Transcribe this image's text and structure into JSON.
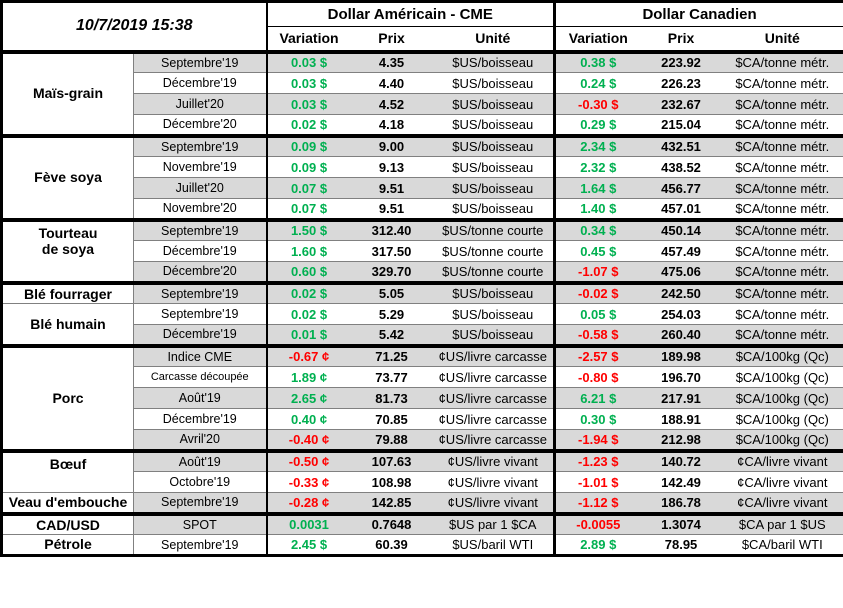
{
  "colors": {
    "positive": "#00B050",
    "negative": "#FF0000",
    "stripe": "#D9D9D9",
    "grid": "#000000"
  },
  "chart_data": {
    "type": "table",
    "title": "10/7/2019 15:38",
    "section_headers": {
      "usd": "Dollar Américain - CME",
      "cad": "Dollar Canadien"
    },
    "column_headers": [
      "Variation",
      "Prix",
      "Unité"
    ],
    "groups": [
      {
        "categories": [
          {
            "label": "Maïs-grain",
            "rowspan": 4
          }
        ],
        "rows": [
          {
            "month": "Septembre'19",
            "us_var": "0.03 $",
            "us_price": "4.35",
            "us_unit": "$US/boisseau",
            "ca_var": "0.38 $",
            "ca_price": "223.92",
            "ca_unit": "$CA/tonne métr."
          },
          {
            "month": "Décembre'19",
            "us_var": "0.03 $",
            "us_price": "4.40",
            "us_unit": "$US/boisseau",
            "ca_var": "0.24 $",
            "ca_price": "226.23",
            "ca_unit": "$CA/tonne métr."
          },
          {
            "month": "Juillet'20",
            "us_var": "0.03 $",
            "us_price": "4.52",
            "us_unit": "$US/boisseau",
            "ca_var": "-0.30 $",
            "ca_price": "232.67",
            "ca_unit": "$CA/tonne métr."
          },
          {
            "month": "Décembre'20",
            "us_var": "0.02 $",
            "us_price": "4.18",
            "us_unit": "$US/boisseau",
            "ca_var": "0.29 $",
            "ca_price": "215.04",
            "ca_unit": "$CA/tonne métr."
          }
        ]
      },
      {
        "categories": [
          {
            "label": "Fève soya",
            "rowspan": 4
          }
        ],
        "rows": [
          {
            "month": "Septembre'19",
            "us_var": "0.09 $",
            "us_price": "9.00",
            "us_unit": "$US/boisseau",
            "ca_var": "2.34 $",
            "ca_price": "432.51",
            "ca_unit": "$CA/tonne métr."
          },
          {
            "month": "Novembre'19",
            "us_var": "0.09 $",
            "us_price": "9.13",
            "us_unit": "$US/boisseau",
            "ca_var": "2.32 $",
            "ca_price": "438.52",
            "ca_unit": "$CA/tonne métr."
          },
          {
            "month": "Juillet'20",
            "us_var": "0.07 $",
            "us_price": "9.51",
            "us_unit": "$US/boisseau",
            "ca_var": "1.64 $",
            "ca_price": "456.77",
            "ca_unit": "$CA/tonne métr."
          },
          {
            "month": "Novembre'20",
            "us_var": "0.07 $",
            "us_price": "9.51",
            "us_unit": "$US/boisseau",
            "ca_var": "1.40 $",
            "ca_price": "457.01",
            "ca_unit": "$CA/tonne métr."
          }
        ]
      },
      {
        "categories": [
          {
            "label": "Tourteau\nde soya",
            "rowspan": 3,
            "valign": "top"
          }
        ],
        "rows": [
          {
            "month": "Septembre'19",
            "us_var": "1.50 $",
            "us_price": "312.40",
            "us_unit": "$US/tonne courte",
            "ca_var": "0.34 $",
            "ca_price": "450.14",
            "ca_unit": "$CA/tonne métr."
          },
          {
            "month": "Décembre'19",
            "us_var": "1.60 $",
            "us_price": "317.50",
            "us_unit": "$US/tonne courte",
            "ca_var": "0.45 $",
            "ca_price": "457.49",
            "ca_unit": "$CA/tonne métr."
          },
          {
            "month": "Décembre'20",
            "us_var": "0.60 $",
            "us_price": "329.70",
            "us_unit": "$US/tonne courte",
            "ca_var": "-1.07 $",
            "ca_price": "475.06",
            "ca_unit": "$CA/tonne métr."
          }
        ]
      },
      {
        "categories": [
          {
            "label": "Blé fourrager",
            "rowspan": 1
          },
          {
            "label": "Blé humain",
            "rowspan": 2
          }
        ],
        "rows": [
          {
            "month": "Septembre'19",
            "us_var": "0.02 $",
            "us_price": "5.05",
            "us_unit": "$US/boisseau",
            "ca_var": "-0.02 $",
            "ca_price": "242.50",
            "ca_unit": "$CA/tonne métr."
          },
          {
            "month": "Septembre'19",
            "us_var": "0.02 $",
            "us_price": "5.29",
            "us_unit": "$US/boisseau",
            "ca_var": "0.05 $",
            "ca_price": "254.03",
            "ca_unit": "$CA/tonne métr."
          },
          {
            "month": "Décembre'19",
            "us_var": "0.01 $",
            "us_price": "5.42",
            "us_unit": "$US/boisseau",
            "ca_var": "-0.58 $",
            "ca_price": "260.40",
            "ca_unit": "$CA/tonne métr."
          }
        ]
      },
      {
        "categories": [
          {
            "label": "Porc",
            "rowspan": 5
          }
        ],
        "rows": [
          {
            "month": "Indice CME",
            "us_var": "-0.67 ¢",
            "us_price": "71.25",
            "us_unit": "¢US/livre carcasse",
            "ca_var": "-2.57 $",
            "ca_price": "189.98",
            "ca_unit": "$CA/100kg (Qc)"
          },
          {
            "month": "Carcasse découpée",
            "small": true,
            "us_var": "1.89 ¢",
            "us_price": "73.77",
            "us_unit": "¢US/livre carcasse",
            "ca_var": "-0.80 $",
            "ca_price": "196.70",
            "ca_unit": "$CA/100kg (Qc)"
          },
          {
            "month": "Août'19",
            "us_var": "2.65 ¢",
            "us_price": "81.73",
            "us_unit": "¢US/livre carcasse",
            "ca_var": "6.21 $",
            "ca_price": "217.91",
            "ca_unit": "$CA/100kg (Qc)"
          },
          {
            "month": "Décembre'19",
            "us_var": "0.40 ¢",
            "us_price": "70.85",
            "us_unit": "¢US/livre carcasse",
            "ca_var": "0.30 $",
            "ca_price": "188.91",
            "ca_unit": "$CA/100kg (Qc)"
          },
          {
            "month": "Avril'20",
            "us_var": "-0.40 ¢",
            "us_price": "79.88",
            "us_unit": "¢US/livre carcasse",
            "ca_var": "-1.94 $",
            "ca_price": "212.98",
            "ca_unit": "$CA/100kg (Qc)"
          }
        ]
      },
      {
        "categories": [
          {
            "label": "Bœuf",
            "rowspan": 2,
            "valign": "top"
          },
          {
            "label": "Veau d'embouche",
            "rowspan": 1
          }
        ],
        "rows": [
          {
            "month": "Août'19",
            "us_var": "-0.50 ¢",
            "us_price": "107.63",
            "us_unit": "¢US/livre vivant",
            "ca_var": "-1.23 $",
            "ca_price": "140.72",
            "ca_unit": "¢CA/livre vivant"
          },
          {
            "month": "Octobre'19",
            "us_var": "-0.33 ¢",
            "us_price": "108.98",
            "us_unit": "¢US/livre vivant",
            "ca_var": "-1.01 $",
            "ca_price": "142.49",
            "ca_unit": "¢CA/livre vivant"
          },
          {
            "month": "Septembre'19",
            "us_var": "-0.28 ¢",
            "us_price": "142.85",
            "us_unit": "¢US/livre vivant",
            "ca_var": "-1.12 $",
            "ca_price": "186.78",
            "ca_unit": "¢CA/livre vivant"
          }
        ]
      },
      {
        "categories": [
          {
            "label": "CAD/USD",
            "rowspan": 1
          },
          {
            "label": "Pétrole",
            "rowspan": 1
          }
        ],
        "rows": [
          {
            "month": "SPOT",
            "us_var": "0.0031",
            "us_price": "0.7648",
            "us_unit": "$US par 1 $CA",
            "ca_var": "-0.0055",
            "ca_price": "1.3074",
            "ca_unit": "$CA par 1 $US"
          },
          {
            "month": "Septembre'19",
            "us_var": "2.45 $",
            "us_price": "60.39",
            "us_unit": "$US/baril WTI",
            "ca_var": "2.89 $",
            "ca_price": "78.95",
            "ca_unit": "$CA/baril WTI"
          }
        ]
      }
    ]
  }
}
